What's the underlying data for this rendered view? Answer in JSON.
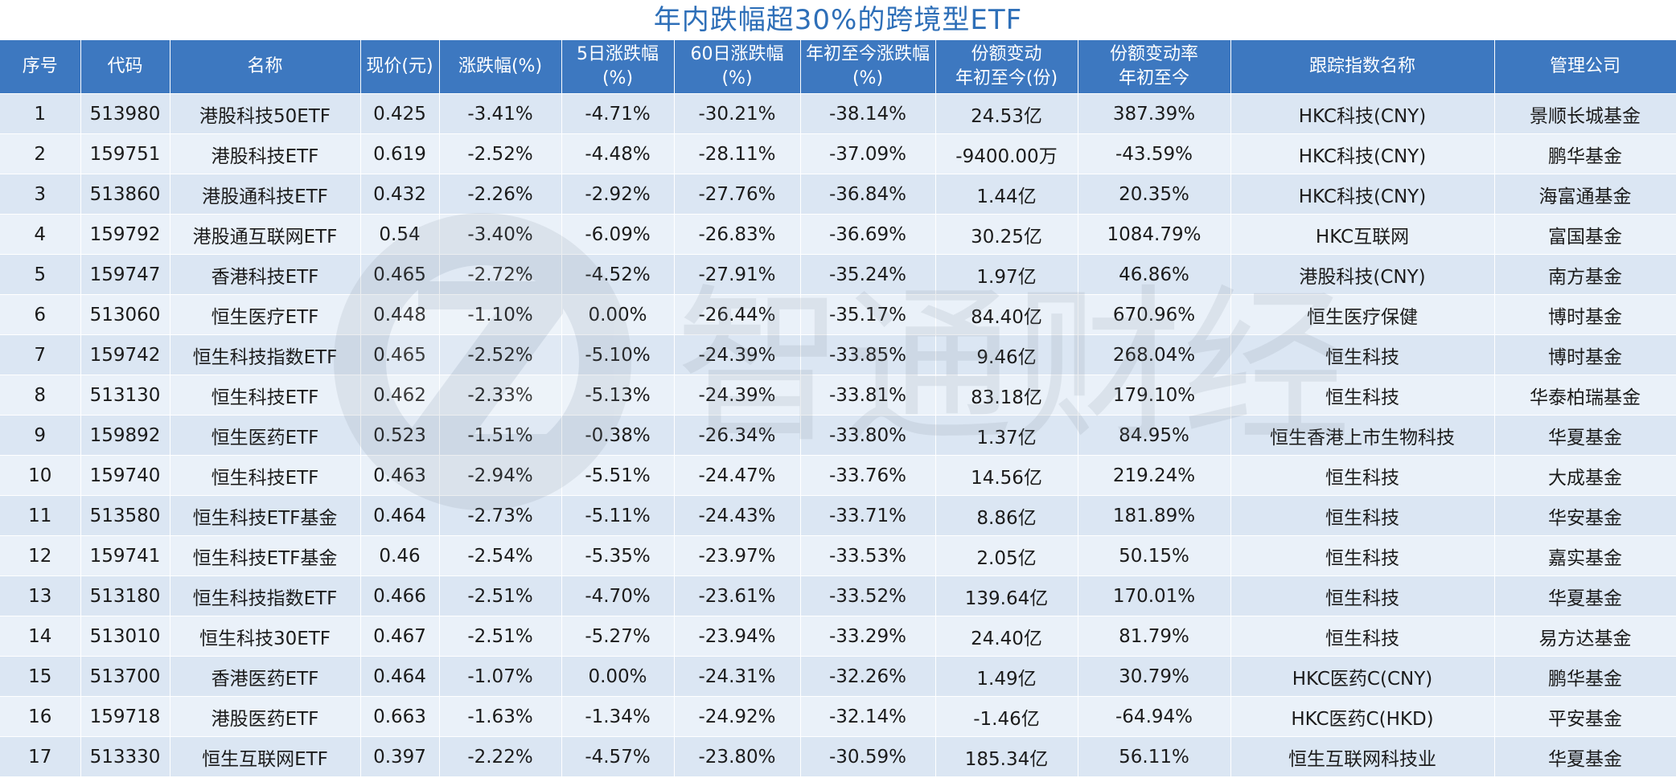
{
  "title": "年内跌幅超30%的跨境型ETF",
  "colors": {
    "header_bg": "#3d78c0",
    "row_odd": "#dbe6f3",
    "row_even": "#eaf1f9",
    "title": "#2e6fb8"
  },
  "watermark_icon": "zhitong-caijing-logo",
  "watermark_text": "智通财经",
  "headers": [
    [
      "序号"
    ],
    [
      "代码"
    ],
    [
      "名称"
    ],
    [
      "现价(元)"
    ],
    [
      "涨跌幅(%)"
    ],
    [
      "5日涨跌幅",
      "(%)"
    ],
    [
      "60日涨跌幅",
      "(%)"
    ],
    [
      "年初至今涨跌幅",
      "(%)"
    ],
    [
      "份额变动",
      "年初至今(份)"
    ],
    [
      "份额变动率",
      "年初至今"
    ],
    [
      "跟踪指数名称"
    ],
    [
      "管理公司"
    ]
  ],
  "rows": [
    [
      "1",
      "513980",
      "港股科技50ETF",
      "0.425",
      "-3.41%",
      "-4.71%",
      "-30.21%",
      "-38.14%",
      "24.53亿",
      "387.39%",
      "HKC科技(CNY)",
      "景顺长城基金"
    ],
    [
      "2",
      "159751",
      "港股科技ETF",
      "0.619",
      "-2.52%",
      "-4.48%",
      "-28.11%",
      "-37.09%",
      "-9400.00万",
      "-43.59%",
      "HKC科技(CNY)",
      "鹏华基金"
    ],
    [
      "3",
      "513860",
      "港股通科技ETF",
      "0.432",
      "-2.26%",
      "-2.92%",
      "-27.76%",
      "-36.84%",
      "1.44亿",
      "20.35%",
      "HKC科技(CNY)",
      "海富通基金"
    ],
    [
      "4",
      "159792",
      "港股通互联网ETF",
      "0.54",
      "-3.40%",
      "-6.09%",
      "-26.83%",
      "-36.69%",
      "30.25亿",
      "1084.79%",
      "HKC互联网",
      "富国基金"
    ],
    [
      "5",
      "159747",
      "香港科技ETF",
      "0.465",
      "-2.72%",
      "-4.52%",
      "-27.91%",
      "-35.24%",
      "1.97亿",
      "46.86%",
      "港股科技(CNY)",
      "南方基金"
    ],
    [
      "6",
      "513060",
      "恒生医疗ETF",
      "0.448",
      "-1.10%",
      "0.00%",
      "-26.44%",
      "-35.17%",
      "84.40亿",
      "670.96%",
      "恒生医疗保健",
      "博时基金"
    ],
    [
      "7",
      "159742",
      "恒生科技指数ETF",
      "0.465",
      "-2.52%",
      "-5.10%",
      "-24.39%",
      "-33.85%",
      "9.46亿",
      "268.04%",
      "恒生科技",
      "博时基金"
    ],
    [
      "8",
      "513130",
      "恒生科技ETF",
      "0.462",
      "-2.33%",
      "-5.13%",
      "-24.39%",
      "-33.81%",
      "83.18亿",
      "179.10%",
      "恒生科技",
      "华泰柏瑞基金"
    ],
    [
      "9",
      "159892",
      "恒生医药ETF",
      "0.523",
      "-1.51%",
      "-0.38%",
      "-26.34%",
      "-33.80%",
      "1.37亿",
      "84.95%",
      "恒生香港上市生物科技",
      "华夏基金"
    ],
    [
      "10",
      "159740",
      "恒生科技ETF",
      "0.463",
      "-2.94%",
      "-5.51%",
      "-24.47%",
      "-33.76%",
      "14.56亿",
      "219.24%",
      "恒生科技",
      "大成基金"
    ],
    [
      "11",
      "513580",
      "恒生科技ETF基金",
      "0.464",
      "-2.73%",
      "-5.11%",
      "-24.43%",
      "-33.71%",
      "8.86亿",
      "181.89%",
      "恒生科技",
      "华安基金"
    ],
    [
      "12",
      "159741",
      "恒生科技ETF基金",
      "0.46",
      "-2.54%",
      "-5.35%",
      "-23.97%",
      "-33.53%",
      "2.05亿",
      "50.15%",
      "恒生科技",
      "嘉实基金"
    ],
    [
      "13",
      "513180",
      "恒生科技指数ETF",
      "0.466",
      "-2.51%",
      "-4.70%",
      "-23.61%",
      "-33.52%",
      "139.64亿",
      "170.01%",
      "恒生科技",
      "华夏基金"
    ],
    [
      "14",
      "513010",
      "恒生科技30ETF",
      "0.467",
      "-2.51%",
      "-5.27%",
      "-23.94%",
      "-33.29%",
      "24.40亿",
      "81.79%",
      "恒生科技",
      "易方达基金"
    ],
    [
      "15",
      "513700",
      "香港医药ETF",
      "0.464",
      "-1.07%",
      "0.00%",
      "-24.31%",
      "-32.26%",
      "1.49亿",
      "30.79%",
      "HKC医药C(CNY)",
      "鹏华基金"
    ],
    [
      "16",
      "159718",
      "港股医药ETF",
      "0.663",
      "-1.63%",
      "-1.34%",
      "-24.92%",
      "-32.14%",
      "-1.46亿",
      "-64.94%",
      "HKC医药C(HKD)",
      "平安基金"
    ],
    [
      "17",
      "513330",
      "恒生互联网ETF",
      "0.397",
      "-2.22%",
      "-4.57%",
      "-23.80%",
      "-30.59%",
      "185.34亿",
      "56.11%",
      "恒生互联网科技业",
      "华夏基金"
    ]
  ]
}
